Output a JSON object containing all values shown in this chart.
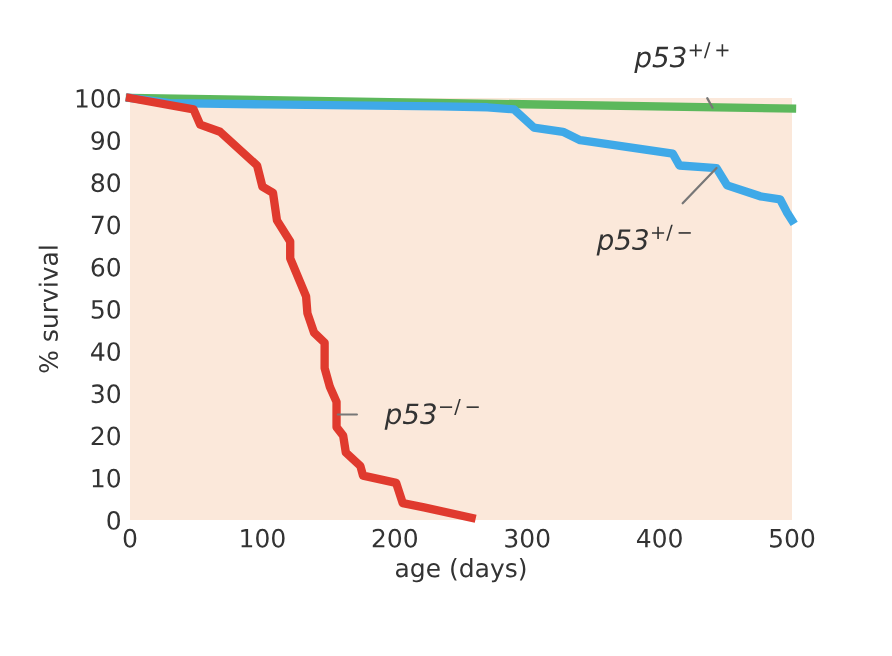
{
  "chart_data": {
    "type": "line",
    "xlabel": "age (days)",
    "ylabel": "% survival",
    "xlim": [
      0,
      500
    ],
    "ylim": [
      0,
      100
    ],
    "xticks": [
      0,
      100,
      200,
      300,
      400,
      500
    ],
    "yticks": [
      0,
      10,
      20,
      30,
      40,
      50,
      60,
      70,
      80,
      90,
      100
    ],
    "line_style": "solid",
    "series": [
      {
        "color": "#5cb85c",
        "x": [
          0,
          500
        ],
        "values": [
          100,
          97.5
        ]
      },
      {
        "color": "#3fa9e8",
        "x": [
          0,
          30,
          100,
          234,
          270,
          290,
          305,
          327,
          340,
          410,
          415,
          443,
          451,
          476,
          491,
          496,
          500
        ],
        "values": [
          100,
          98.8,
          98.5,
          98,
          97.8,
          97.3,
          93,
          92,
          90,
          86.8,
          84,
          83.4,
          79.3,
          76.7,
          76,
          73,
          71
        ]
      },
      {
        "color": "#e03a2e",
        "x": [
          0,
          48,
          53,
          68,
          96,
          100,
          108,
          111,
          121,
          121,
          133,
          134,
          139,
          147,
          147,
          151,
          156,
          156,
          161,
          163,
          174,
          176,
          201,
          206,
          222,
          258
        ],
        "values": [
          100,
          97.3,
          93.7,
          92,
          84,
          79,
          77.5,
          71,
          66,
          62,
          53,
          49,
          44.4,
          42,
          36,
          31.5,
          28,
          22,
          20,
          16,
          12.8,
          10.5,
          8.8,
          4,
          3,
          0.5
        ]
      }
    ],
    "annotations": [
      {
        "text": "p53$^{+/+}$",
        "x": 440,
        "y": 97.7
      },
      {
        "text": "p53$^{+/−}$",
        "x": 443,
        "y": 83.4
      },
      {
        "text": "p53$^{−/−}$",
        "x": 157,
        "y": 25
      }
    ]
  }
}
